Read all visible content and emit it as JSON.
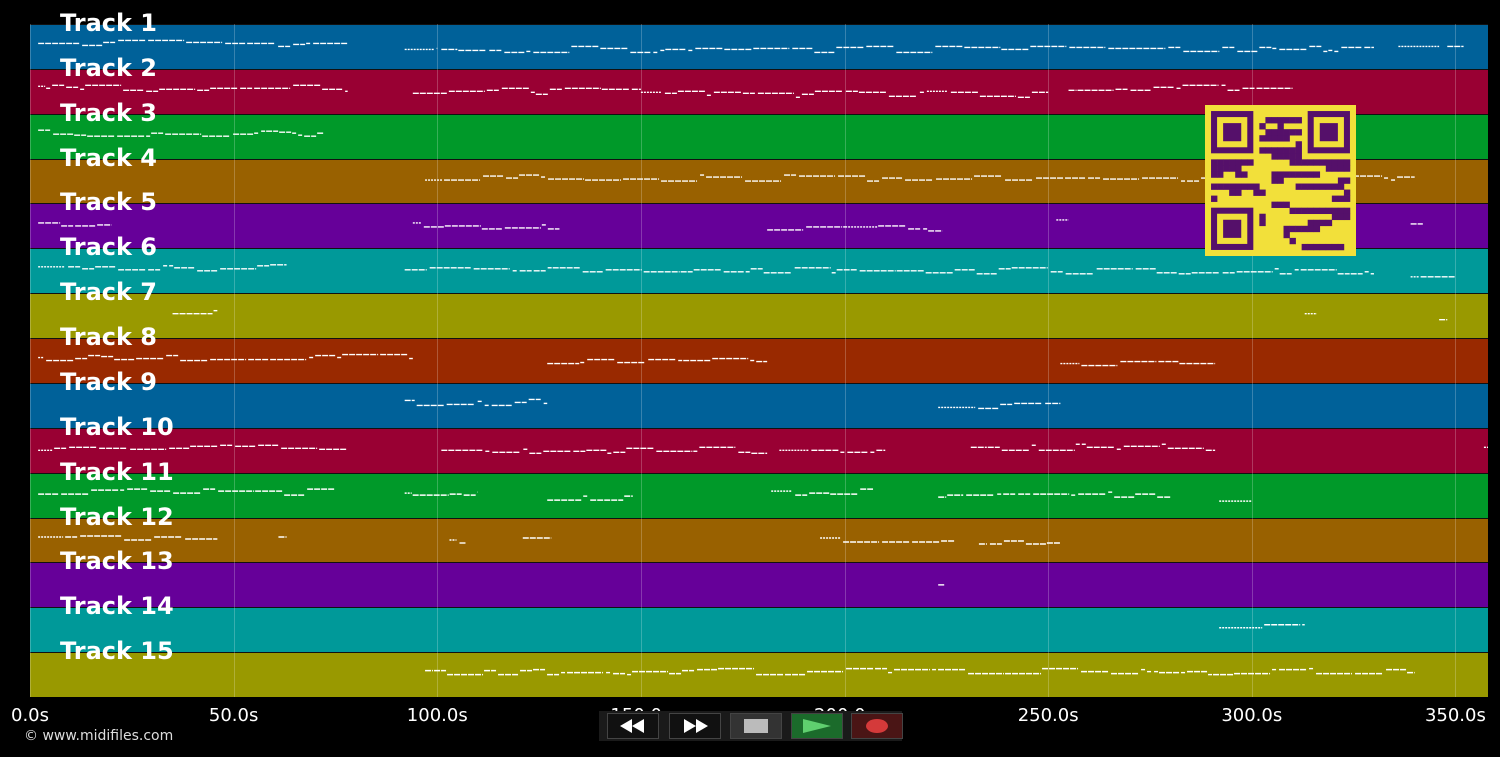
{
  "tracks": [
    {
      "label": "Track 1",
      "color": "#006199"
    },
    {
      "label": "Track 2",
      "color": "#990033"
    },
    {
      "label": "Track 3",
      "color": "#009929"
    },
    {
      "label": "Track 4",
      "color": "#996100"
    },
    {
      "label": "Track 5",
      "color": "#660099"
    },
    {
      "label": "Track 6",
      "color": "#009999"
    },
    {
      "label": "Track 7",
      "color": "#999900"
    },
    {
      "label": "Track 8",
      "color": "#992900"
    },
    {
      "label": "Track 9",
      "color": "#006199"
    },
    {
      "label": "Track 10",
      "color": "#990033"
    },
    {
      "label": "Track 11",
      "color": "#009929"
    },
    {
      "label": "Track 12",
      "color": "#996100"
    },
    {
      "label": "Track 13",
      "color": "#660099"
    },
    {
      "label": "Track 14",
      "color": "#009999"
    },
    {
      "label": "Track 15",
      "color": "#999900"
    }
  ],
  "axis": {
    "unit": "s",
    "ticks": [
      "0.0s",
      "50.0s",
      "100.0s",
      "150.0s",
      "200.0s",
      "250.0s",
      "300.0s",
      "350.0s"
    ],
    "tick_values": [
      0,
      50,
      100,
      150,
      200,
      250,
      300,
      350
    ],
    "range": [
      0,
      358
    ]
  },
  "credit": "© www.midifiles.com",
  "controls": [
    {
      "name": "rewind",
      "icon": "rewind-icon"
    },
    {
      "name": "fast-forward",
      "icon": "fast-forward-icon"
    },
    {
      "name": "stop",
      "icon": "stop-icon"
    },
    {
      "name": "play",
      "icon": "play-icon"
    },
    {
      "name": "record",
      "icon": "record-icon"
    }
  ],
  "note_segments": [
    [
      [
        2,
        78
      ],
      [
        92,
        100
      ],
      [
        101,
        330
      ],
      [
        336,
        346
      ],
      [
        348,
        352
      ]
    ],
    [
      [
        2,
        78
      ],
      [
        94,
        150
      ],
      [
        150,
        250
      ],
      [
        255,
        310
      ]
    ],
    [
      [
        2,
        72
      ]
    ],
    [
      [
        97,
        340
      ]
    ],
    [
      [
        2,
        20
      ],
      [
        94,
        130
      ],
      [
        181,
        224
      ],
      [
        252,
        255
      ],
      [
        339,
        342
      ]
    ],
    [
      [
        2,
        63
      ],
      [
        92,
        330
      ],
      [
        339,
        350
      ]
    ],
    [
      [
        35,
        46
      ],
      [
        313,
        316
      ],
      [
        346,
        348
      ]
    ],
    [
      [
        2,
        94
      ],
      [
        127,
        181
      ],
      [
        253,
        291
      ]
    ],
    [
      [
        92,
        127
      ],
      [
        223,
        253
      ]
    ],
    [
      [
        2,
        78
      ],
      [
        101,
        181
      ],
      [
        184,
        210
      ],
      [
        231,
        291
      ],
      [
        357,
        358
      ]
    ],
    [
      [
        2,
        75
      ],
      [
        92,
        110
      ],
      [
        127,
        148
      ],
      [
        182,
        207
      ],
      [
        223,
        280
      ],
      [
        292,
        300
      ]
    ],
    [
      [
        2,
        46
      ],
      [
        61,
        63
      ],
      [
        103,
        107
      ],
      [
        121,
        128
      ],
      [
        194,
        227
      ],
      [
        233,
        253
      ]
    ],
    [
      [
        223,
        224
      ]
    ],
    [
      [
        292,
        313
      ]
    ],
    [
      [
        97,
        340
      ]
    ]
  ]
}
